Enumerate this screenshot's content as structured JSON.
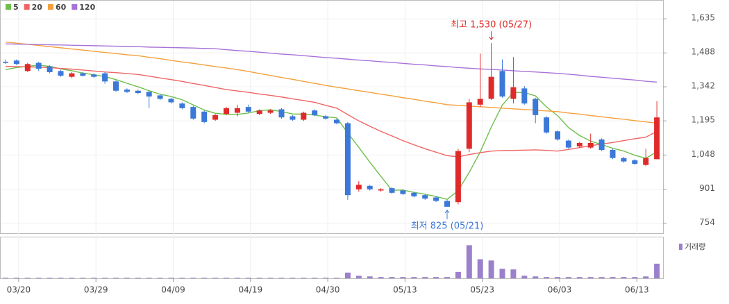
{
  "chart_data": {
    "type": "candlestick",
    "categories": [
      null,
      "03/20",
      null,
      null,
      null,
      null,
      null,
      null,
      "03/29",
      null,
      null,
      null,
      null,
      null,
      null,
      "04/09",
      null,
      null,
      null,
      null,
      null,
      null,
      "04/19",
      null,
      null,
      null,
      null,
      null,
      null,
      "04/30",
      null,
      null,
      null,
      null,
      null,
      null,
      "05/13",
      null,
      null,
      null,
      null,
      null,
      null,
      "05/23",
      null,
      null,
      null,
      null,
      null,
      null,
      "06/03",
      null,
      null,
      null,
      null,
      null,
      null,
      "06/13",
      null,
      null
    ],
    "open": [
      1450,
      1455,
      1410,
      1445,
      1430,
      1410,
      1385,
      1400,
      1395,
      1400,
      1365,
      1330,
      1325,
      1320,
      1305,
      1290,
      1270,
      1255,
      1235,
      1200,
      1225,
      1230,
      1255,
      1225,
      1230,
      1245,
      1215,
      1200,
      1240,
      1215,
      1200,
      1185,
      900,
      915,
      895,
      905,
      895,
      885,
      875,
      865,
      850,
      845,
      1075,
      1265,
      1290,
      1410,
      1290,
      1335,
      1290,
      1210,
      1150,
      1110,
      1085,
      1080,
      1115,
      1070,
      1035,
      1025,
      1005,
      1030
    ],
    "high": [
      1460,
      1460,
      1445,
      1450,
      1435,
      1415,
      1405,
      1405,
      1400,
      1405,
      1370,
      1335,
      1330,
      1325,
      1310,
      1295,
      1275,
      1260,
      1240,
      1225,
      1255,
      1265,
      1265,
      1245,
      1245,
      1250,
      1220,
      1235,
      1245,
      1220,
      1205,
      1190,
      935,
      920,
      905,
      910,
      900,
      890,
      880,
      870,
      855,
      1075,
      1290,
      1485,
      1530,
      1460,
      1470,
      1345,
      1295,
      1215,
      1155,
      1115,
      1105,
      1140,
      1120,
      1075,
      1040,
      1030,
      1075,
      1280
    ],
    "low": [
      1440,
      1435,
      1405,
      1410,
      1400,
      1385,
      1380,
      1385,
      1380,
      1355,
      1320,
      1315,
      1310,
      1250,
      1285,
      1270,
      1245,
      1200,
      1185,
      1195,
      1220,
      1215,
      1230,
      1220,
      1225,
      1205,
      1195,
      1195,
      1215,
      1200,
      1180,
      855,
      890,
      895,
      890,
      880,
      875,
      865,
      855,
      845,
      825,
      835,
      1060,
      1255,
      1285,
      1295,
      1270,
      1265,
      1185,
      1140,
      1110,
      1075,
      1080,
      1075,
      1065,
      1030,
      1015,
      1005,
      1000,
      1030
    ],
    "close": [
      1445,
      1440,
      1440,
      1420,
      1405,
      1390,
      1400,
      1390,
      1385,
      1365,
      1325,
      1320,
      1315,
      1300,
      1290,
      1275,
      1250,
      1205,
      1190,
      1220,
      1250,
      1250,
      1235,
      1240,
      1240,
      1210,
      1200,
      1230,
      1220,
      1205,
      1185,
      875,
      920,
      900,
      900,
      885,
      880,
      870,
      860,
      850,
      825,
      1065,
      1275,
      1290,
      1385,
      1300,
      1340,
      1270,
      1220,
      1145,
      1115,
      1080,
      1100,
      1100,
      1070,
      1035,
      1020,
      1010,
      1035,
      1210
    ],
    "up_color": "#e02a2a",
    "down_color": "#3b78d8",
    "series": [
      {
        "name": "5",
        "color": "#6cc04a",
        "values": [
          1416,
          1425,
          1430,
          1435,
          1430,
          1419,
          1411,
          1401,
          1394,
          1386,
          1373,
          1357,
          1342,
          1325,
          1310,
          1300,
          1286,
          1264,
          1242,
          1228,
          1223,
          1223,
          1229,
          1239,
          1243,
          1235,
          1225,
          1224,
          1220,
          1213,
          1208,
          1143,
          1081,
          1017,
          956,
          896,
          897,
          887,
          879,
          869,
          857,
          894,
          973,
          1061,
          1168,
          1263,
          1318,
          1317,
          1303,
          1255,
          1218,
          1166,
          1132,
          1108,
          1093,
          1077,
          1065,
          1047,
          1034,
          1062
        ]
      },
      {
        "name": "20",
        "color": "#f06464",
        "values": [
          1430,
          1429,
          1428,
          1426,
          1425,
          1421,
          1418,
          1414,
          1410,
          1406,
          1403,
          1399,
          1395,
          1388,
          1380,
          1373,
          1365,
          1356,
          1348,
          1339,
          1330,
          1324,
          1318,
          1311,
          1305,
          1298,
          1290,
          1283,
          1275,
          1262,
          1250,
          1222,
          1195,
          1172,
          1150,
          1130,
          1110,
          1092,
          1075,
          1060,
          1045,
          1040,
          1050,
          1058,
          1065,
          1067,
          1068,
          1069,
          1070,
          1068,
          1065,
          1072,
          1080,
          1088,
          1095,
          1102,
          1110,
          1118,
          1125,
          1150
        ]
      },
      {
        "name": "60",
        "color": "#f5a03c",
        "values": [
          1535,
          1530,
          1525,
          1520,
          1515,
          1510,
          1505,
          1500,
          1495,
          1490,
          1485,
          1480,
          1476,
          1469,
          1463,
          1456,
          1449,
          1443,
          1436,
          1429,
          1423,
          1416,
          1408,
          1399,
          1391,
          1382,
          1374,
          1365,
          1357,
          1348,
          1340,
          1333,
          1325,
          1318,
          1310,
          1303,
          1295,
          1288,
          1280,
          1273,
          1265,
          1262,
          1259,
          1256,
          1253,
          1250,
          1247,
          1244,
          1241,
          1238,
          1235,
          1229,
          1224,
          1218,
          1213,
          1207,
          1202,
          1196,
          1191,
          1185
        ]
      },
      {
        "name": "120",
        "color": "#a872d8",
        "values": [
          1527,
          1526,
          1525,
          1524,
          1523,
          1522,
          1521,
          1520,
          1519,
          1518,
          1517,
          1516,
          1515,
          1513,
          1512,
          1511,
          1510,
          1509,
          1507,
          1506,
          1502,
          1498,
          1495,
          1491,
          1487,
          1483,
          1480,
          1476,
          1472,
          1468,
          1465,
          1461,
          1457,
          1454,
          1450,
          1447,
          1443,
          1439,
          1436,
          1432,
          1429,
          1425,
          1422,
          1419,
          1417,
          1414,
          1411,
          1408,
          1406,
          1403,
          1400,
          1396,
          1392,
          1387,
          1383,
          1379,
          1375,
          1371,
          1366,
          1362
        ]
      }
    ],
    "volume": {
      "name": "거래량",
      "color": "#9b80cc",
      "ylim": [
        0,
        60
      ],
      "values": [
        1,
        1,
        1,
        1,
        1,
        1,
        1,
        1,
        1,
        1,
        1,
        1,
        1,
        1,
        1,
        1,
        1,
        1,
        1,
        1,
        1,
        1,
        1,
        1,
        1,
        1,
        1,
        1,
        1,
        1,
        1,
        9,
        4,
        3,
        2,
        2,
        2,
        2,
        2,
        2,
        2,
        10,
        52,
        30,
        28,
        15,
        14,
        4,
        3,
        2,
        2,
        2,
        2,
        2,
        2,
        2,
        2,
        2,
        3,
        23
      ]
    },
    "ylim": [
      711,
      1716
    ],
    "yticks": [
      {
        "value": 754,
        "label": "754"
      },
      {
        "value": 901,
        "label": "901"
      },
      {
        "value": 1048,
        "label": "1,048"
      },
      {
        "value": 1195,
        "label": "1,195"
      },
      {
        "value": 1342,
        "label": "1,342"
      },
      {
        "value": 1488,
        "label": "1,488"
      },
      {
        "value": 1635,
        "label": "1,635"
      }
    ],
    "annotations": [
      {
        "text": "최고 1,530 (05/27)",
        "color": "#e02a2a"
      },
      {
        "text": "최저 825 (05/21)",
        "color": "#3b78d8"
      }
    ]
  }
}
